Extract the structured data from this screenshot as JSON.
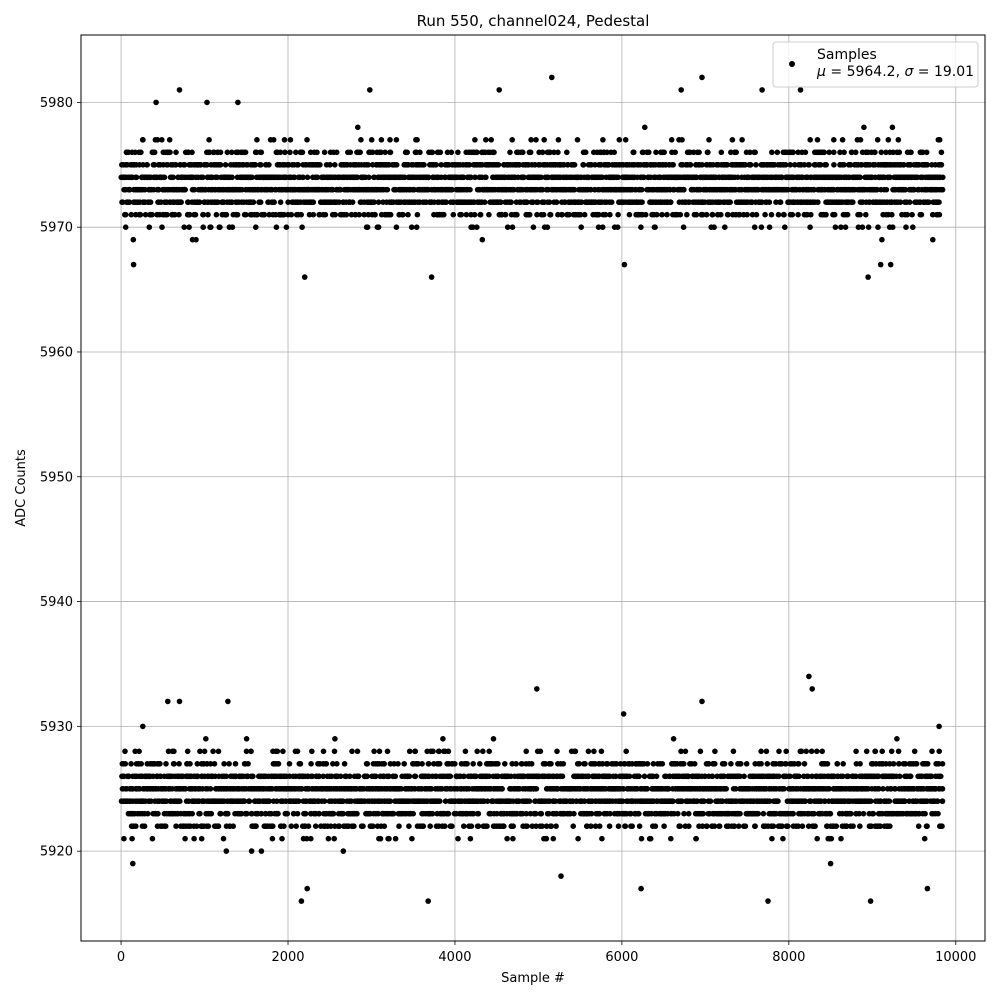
{
  "chart_data": {
    "type": "scatter",
    "title": "Run 550, channel024, Pedestal",
    "xlabel": "Sample #",
    "ylabel": "ADC Counts",
    "xlim": [
      -480,
      10350
    ],
    "ylim": [
      5912.8,
      5985.4
    ],
    "xticks": [
      0,
      2000,
      4000,
      6000,
      8000,
      10000
    ],
    "yticks": [
      5920,
      5930,
      5940,
      5950,
      5960,
      5970,
      5980
    ],
    "grid": true,
    "legend": {
      "placement": "top-right",
      "label": "Samples",
      "mu_symbol": "μ",
      "sigma_symbol": "σ",
      "mu": 5964.2,
      "sigma": 19.01
    },
    "series": [
      {
        "name": "Samples",
        "color": "#000000",
        "marker": "circle",
        "clusters": [
          {
            "description_values": "upper band",
            "x_range": [
              0,
              9840
            ],
            "y_range": [
              5966,
              5982
            ],
            "y_center": 5973.4,
            "points": [
              [
                150,
                5967
              ],
              [
                420,
                5980
              ],
              [
                700,
                5981
              ],
              [
                1030,
                5980
              ],
              [
                1400,
                5980
              ],
              [
                2200,
                5966
              ],
              [
                2980,
                5981
              ],
              [
                3720,
                5966
              ],
              [
                4530,
                5981
              ],
              [
                5160,
                5982
              ],
              [
                6030,
                5967
              ],
              [
                6710,
                5981
              ],
              [
                6960,
                5982
              ],
              [
                7680,
                5981
              ],
              [
                8140,
                5981
              ],
              [
                8950,
                5966
              ],
              [
                9100,
                5967
              ],
              [
                9220,
                5967
              ]
            ]
          },
          {
            "description_values": "lower band",
            "x_range": [
              0,
              9840
            ],
            "y_range": [
              5916,
              5934
            ],
            "y_center": 5924.6,
            "points": [
              [
                140,
                5919
              ],
              [
                260,
                5930
              ],
              [
                560,
                5932
              ],
              [
                700,
                5932
              ],
              [
                1280,
                5932
              ],
              [
                2160,
                5916
              ],
              [
                2230,
                5917
              ],
              [
                3680,
                5916
              ],
              [
                4980,
                5933
              ],
              [
                5270,
                5918
              ],
              [
                6020,
                5931
              ],
              [
                6230,
                5917
              ],
              [
                6960,
                5932
              ],
              [
                7750,
                5916
              ],
              [
                8240,
                5934
              ],
              [
                8280,
                5933
              ],
              [
                8500,
                5919
              ],
              [
                8980,
                5916
              ],
              [
                9660,
                5917
              ],
              [
                9800,
                5930
              ]
            ]
          }
        ]
      }
    ]
  }
}
